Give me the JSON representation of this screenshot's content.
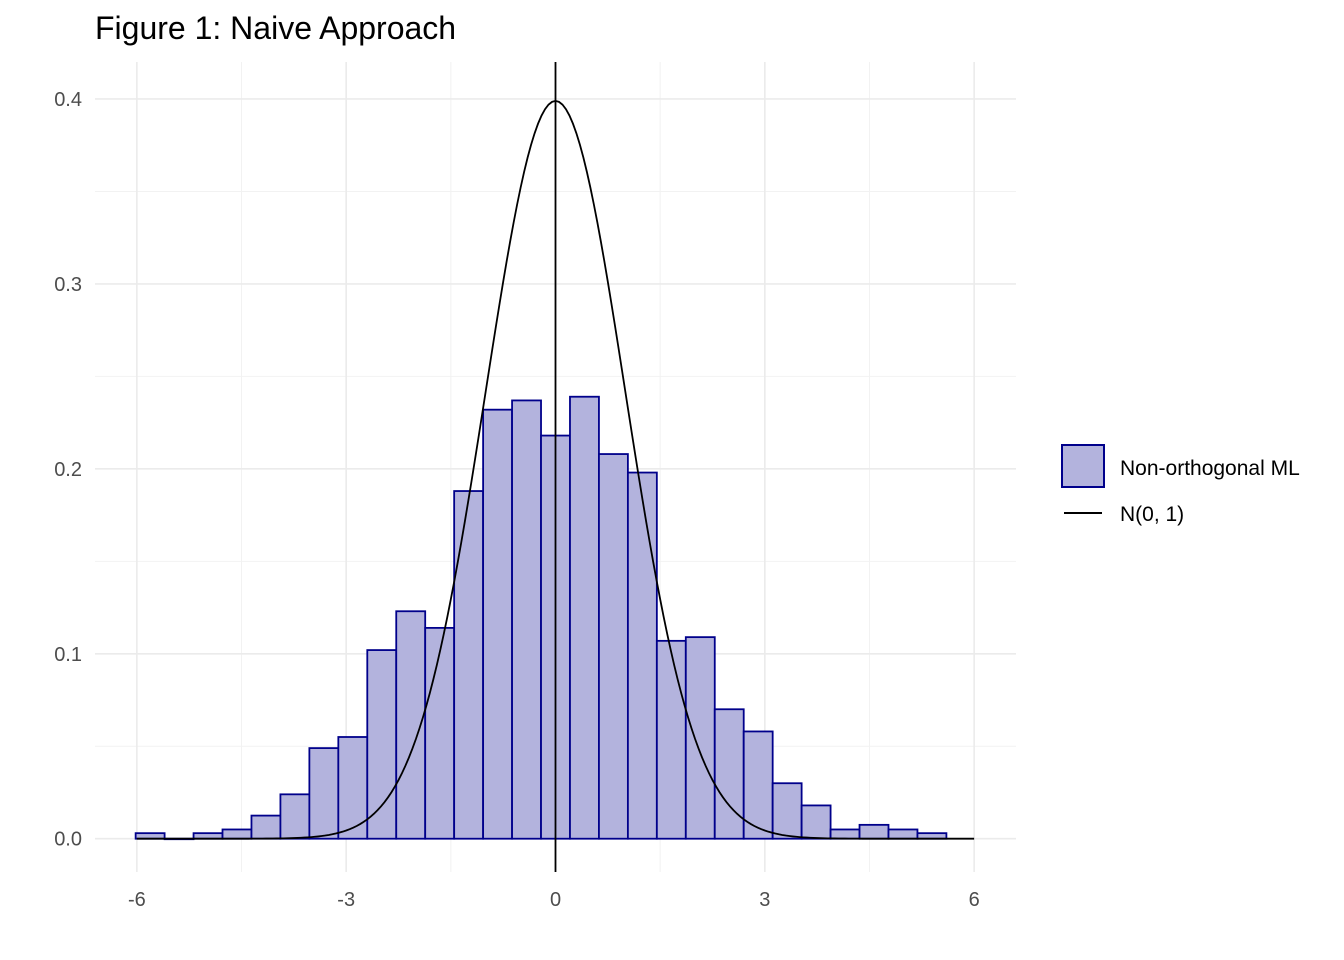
{
  "chart_data": {
    "type": "bar",
    "title": "Figure 1: Naive Approach",
    "xlabel": "",
    "ylabel": "",
    "xlim": [
      -6.6,
      6.6
    ],
    "ylim": [
      -0.018,
      0.42
    ],
    "x_ticks": [
      -6,
      -3,
      0,
      3,
      6
    ],
    "x_tick_labels": [
      "-6",
      "-3",
      "0",
      "3",
      "6"
    ],
    "y_ticks": [
      0.0,
      0.1,
      0.2,
      0.3,
      0.4
    ],
    "y_tick_labels": [
      "0.0",
      "0.1",
      "0.2",
      "0.3",
      "0.4"
    ],
    "grid": true,
    "vline_x": 0,
    "bin_width": 0.415,
    "series": [
      {
        "name": "Non-orthogonal ML",
        "kind": "histogram",
        "fill": "#b3b3dd",
        "stroke": "#00008b",
        "bin_centers": [
          -5.81,
          -5.395,
          -4.98,
          -4.565,
          -4.15,
          -3.735,
          -3.32,
          -2.905,
          -2.49,
          -2.075,
          -1.66,
          -1.245,
          -0.83,
          -0.415,
          0.0,
          0.415,
          0.83,
          1.245,
          1.66,
          2.075,
          2.49,
          2.905,
          3.32,
          3.735,
          4.15,
          4.565,
          4.98,
          5.395
        ],
        "values": [
          0.003,
          0.0,
          0.003,
          0.005,
          0.0125,
          0.024,
          0.049,
          0.055,
          0.102,
          0.123,
          0.114,
          0.188,
          0.232,
          0.237,
          0.218,
          0.239,
          0.208,
          0.198,
          0.107,
          0.109,
          0.07,
          0.058,
          0.03,
          0.018,
          0.005,
          0.0075,
          0.005,
          0.003
        ]
      },
      {
        "name": "N(0, 1)",
        "kind": "density",
        "stroke": "#000000",
        "x_range": [
          -6,
          6
        ]
      }
    ],
    "legend_position": "right"
  }
}
